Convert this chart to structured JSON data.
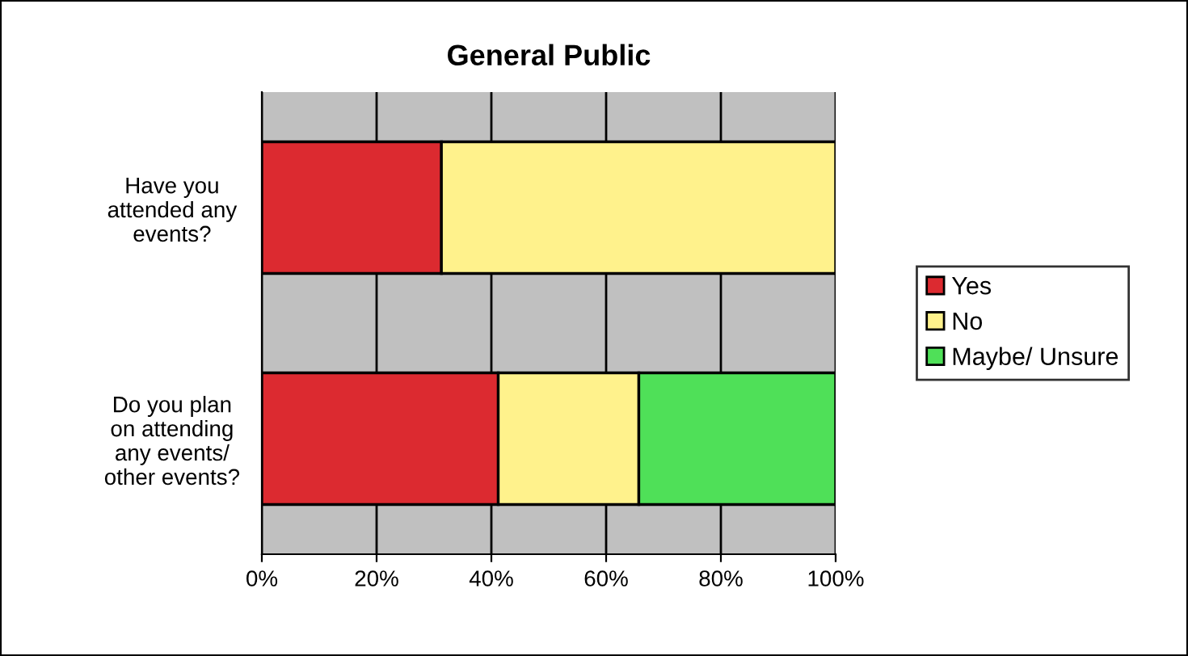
{
  "chart_data": {
    "type": "bar",
    "orientation": "horizontal",
    "stacked": true,
    "title": "General Public",
    "categories": [
      "Have you\nattended any\nevents?",
      "Do you plan\non attending\nany events/\nother events?"
    ],
    "series": [
      {
        "name": "Yes",
        "color": "#dc2a30",
        "values": [
          31.3,
          41.2
        ]
      },
      {
        "name": "No",
        "color": "#fff28c",
        "values": [
          68.7,
          24.5
        ]
      },
      {
        "name": "Maybe/ Unsure",
        "color": "#4fe058",
        "values": [
          null,
          34.3
        ]
      }
    ],
    "xlim": [
      0,
      100
    ],
    "xticks": [
      {
        "value": 0,
        "label": "0%"
      },
      {
        "value": 20,
        "label": "20%"
      },
      {
        "value": 40,
        "label": "40%"
      },
      {
        "value": 60,
        "label": "60%"
      },
      {
        "value": 80,
        "label": "80%"
      },
      {
        "value": 100,
        "label": "100%"
      }
    ],
    "grid": "x",
    "legend": "right"
  }
}
